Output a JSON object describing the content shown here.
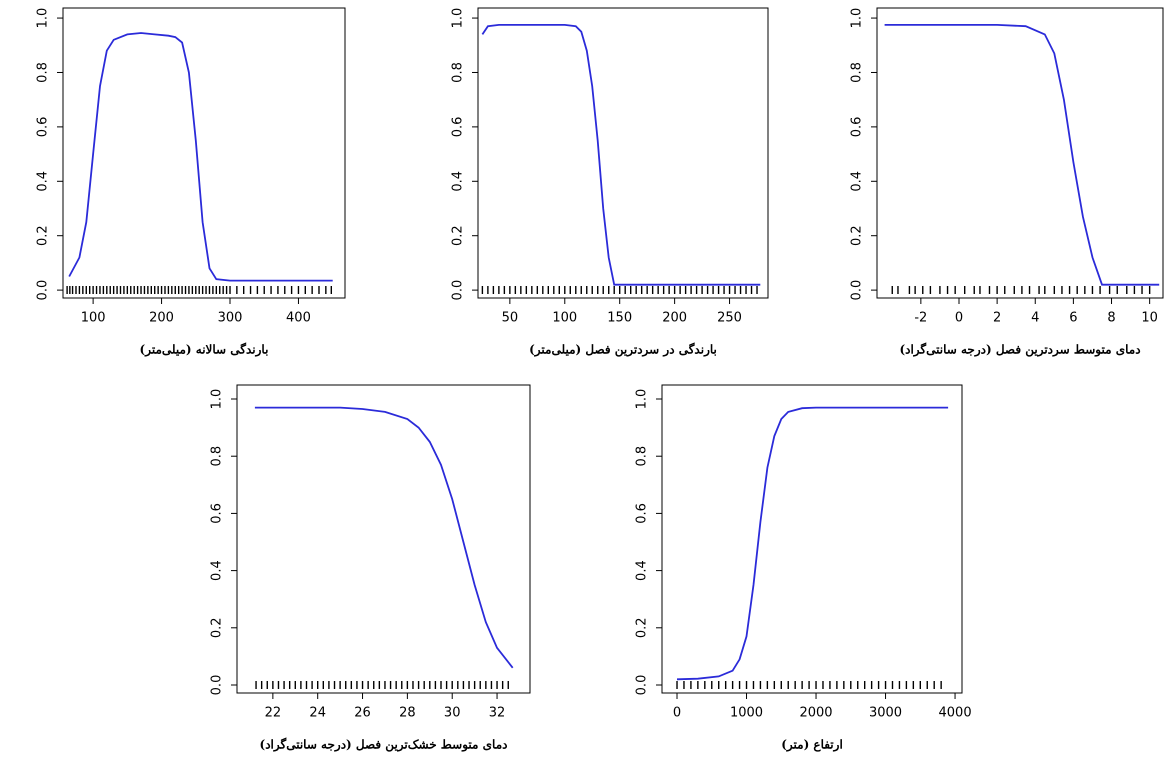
{
  "chart_data": [
    {
      "type": "line",
      "xlabel": "بارندگی سالانه (میلی‌متر)",
      "color": "#2b2bd9",
      "x": [
        65,
        80,
        90,
        100,
        110,
        120,
        130,
        150,
        170,
        190,
        210,
        220,
        230,
        240,
        250,
        260,
        270,
        280,
        300,
        350,
        400,
        450
      ],
      "values": [
        0.05,
        0.12,
        0.25,
        0.5,
        0.75,
        0.88,
        0.92,
        0.94,
        0.945,
        0.94,
        0.935,
        0.93,
        0.91,
        0.8,
        0.55,
        0.25,
        0.08,
        0.04,
        0.035,
        0.035,
        0.035,
        0.035
      ],
      "rug": [
        62,
        66,
        70,
        75,
        80,
        85,
        90,
        95,
        100,
        105,
        110,
        115,
        120,
        125,
        130,
        135,
        140,
        145,
        150,
        155,
        160,
        165,
        170,
        175,
        180,
        185,
        190,
        195,
        200,
        205,
        210,
        215,
        220,
        225,
        230,
        235,
        240,
        245,
        250,
        255,
        260,
        265,
        270,
        275,
        280,
        285,
        290,
        295,
        300,
        310,
        320,
        330,
        340,
        350,
        360,
        370,
        380,
        390,
        400,
        410,
        420,
        430,
        440,
        448
      ],
      "xlim": [
        56,
        468
      ],
      "xticks": [
        100,
        200,
        300,
        400
      ],
      "ylim": [
        -0.029,
        1.037
      ],
      "yticks": [
        {
          "value": 0,
          "label": "0.0"
        },
        0.2,
        0.4,
        0.6,
        0.8,
        {
          "value": 1,
          "label": "1.0"
        }
      ]
    },
    {
      "type": "line",
      "xlabel": "بارندگی در سردترین فصل (میلی‌متر)",
      "color": "#2b2bd9",
      "x": [
        25,
        30,
        40,
        60,
        80,
        100,
        110,
        115,
        120,
        125,
        130,
        135,
        140,
        145,
        150,
        200,
        250,
        278
      ],
      "values": [
        0.94,
        0.97,
        0.975,
        0.975,
        0.975,
        0.975,
        0.97,
        0.95,
        0.88,
        0.75,
        0.55,
        0.3,
        0.12,
        0.02,
        0.02,
        0.02,
        0.02,
        0.02
      ],
      "rug": [
        25,
        30,
        35,
        40,
        45,
        50,
        55,
        60,
        65,
        70,
        75,
        80,
        85,
        90,
        95,
        100,
        105,
        110,
        115,
        120,
        125,
        130,
        135,
        140,
        145,
        150,
        155,
        160,
        165,
        170,
        175,
        180,
        185,
        190,
        195,
        200,
        205,
        210,
        215,
        220,
        225,
        230,
        235,
        240,
        245,
        250,
        255,
        260,
        265,
        270,
        275
      ],
      "xlim": [
        21,
        285
      ],
      "xticks": [
        50,
        100,
        150,
        200,
        250
      ],
      "ylim": [
        -0.029,
        1.037
      ],
      "yticks": [
        {
          "value": 0,
          "label": "0.0"
        },
        0.2,
        0.4,
        0.6,
        0.8,
        {
          "value": 1,
          "label": "1.0"
        }
      ]
    },
    {
      "type": "line",
      "xlabel": "دمای متوسط سردترین فصل (درجه سانتی‌گراد)",
      "color": "#2b2bd9",
      "x": [
        -3.9,
        -2,
        0,
        2,
        3.5,
        4.5,
        5,
        5.5,
        6,
        6.5,
        7,
        7.3,
        7.5,
        8,
        10,
        10.5
      ],
      "values": [
        0.975,
        0.975,
        0.975,
        0.975,
        0.97,
        0.94,
        0.87,
        0.7,
        0.47,
        0.27,
        0.12,
        0.06,
        0.02,
        0.02,
        0.02,
        0.02
      ],
      "rug": [
        -3.5,
        -3.2,
        -2.6,
        -2.3,
        -1.9,
        -1.5,
        -1,
        -0.6,
        -0.2,
        0.3,
        0.8,
        1.1,
        1.6,
        2,
        2.4,
        2.9,
        3.3,
        3.7,
        4.2,
        4.5,
        5,
        5.4,
        5.8,
        6.2,
        6.6,
        7,
        7.4,
        7.9,
        8.3,
        8.8,
        9.2,
        9.6,
        10
      ],
      "xlim": [
        -4.3,
        10.7
      ],
      "xticks": [
        -2,
        0,
        2,
        4,
        6,
        8,
        10
      ],
      "ylim": [
        -0.029,
        1.037
      ],
      "yticks": [
        {
          "value": 0,
          "label": "0.0"
        },
        0.2,
        0.4,
        0.6,
        0.8,
        {
          "value": 1,
          "label": "1.0"
        }
      ]
    },
    {
      "type": "line",
      "xlabel": "دمای متوسط خشک‌ترین فصل (درجه سانتی‌گراد)",
      "color": "#2b2bd9",
      "x": [
        21.2,
        23,
        25,
        26,
        27,
        28,
        28.5,
        29,
        29.5,
        30,
        30.5,
        31,
        31.5,
        32,
        32.7
      ],
      "values": [
        0.97,
        0.97,
        0.97,
        0.965,
        0.955,
        0.93,
        0.9,
        0.85,
        0.77,
        0.65,
        0.5,
        0.35,
        0.22,
        0.13,
        0.06
      ],
      "rug": [
        21.25,
        21.5,
        21.75,
        22,
        22.25,
        22.5,
        22.75,
        23,
        23.25,
        23.5,
        23.75,
        24,
        24.25,
        24.5,
        24.75,
        25,
        25.25,
        25.5,
        25.75,
        26,
        26.25,
        26.5,
        26.75,
        27,
        27.25,
        27.5,
        27.75,
        28,
        28.25,
        28.5,
        28.75,
        29,
        29.25,
        29.5,
        29.75,
        30,
        30.25,
        30.5,
        30.75,
        31,
        31.25,
        31.5,
        31.75,
        32,
        32.25,
        32.5
      ],
      "xlim": [
        20.4,
        33.47
      ],
      "xticks": [
        22,
        24,
        26,
        28,
        30,
        32
      ],
      "ylim": [
        -0.028,
        1.049
      ],
      "yticks": [
        {
          "value": 0,
          "label": "0.0"
        },
        0.2,
        0.4,
        0.6,
        0.8,
        {
          "value": 1,
          "label": "1.0"
        }
      ]
    },
    {
      "type": "line",
      "xlabel": "ارتفاع (متر)",
      "color": "#2b2bd9",
      "x": [
        0,
        300,
        600,
        800,
        900,
        1000,
        1100,
        1200,
        1300,
        1400,
        1500,
        1600,
        1800,
        2000,
        3000,
        3900
      ],
      "values": [
        0.02,
        0.022,
        0.03,
        0.05,
        0.09,
        0.17,
        0.35,
        0.57,
        0.76,
        0.87,
        0.93,
        0.955,
        0.968,
        0.97,
        0.97,
        0.97
      ],
      "rug": [
        0,
        100,
        200,
        300,
        400,
        500,
        600,
        700,
        800,
        900,
        1000,
        1100,
        1200,
        1300,
        1400,
        1500,
        1600,
        1700,
        1800,
        1900,
        2000,
        2100,
        2200,
        2300,
        2400,
        2500,
        2600,
        2700,
        2800,
        2900,
        3000,
        3100,
        3200,
        3300,
        3400,
        3500,
        3600,
        3700,
        3800
      ],
      "xlim": [
        -216,
        4100
      ],
      "xticks": [
        0,
        1000,
        2000,
        3000,
        4000
      ],
      "ylim": [
        -0.028,
        1.049
      ],
      "yticks": [
        {
          "value": 0,
          "label": "0.0"
        },
        0.2,
        0.4,
        0.6,
        0.8,
        {
          "value": 1,
          "label": "1.0"
        }
      ]
    }
  ]
}
